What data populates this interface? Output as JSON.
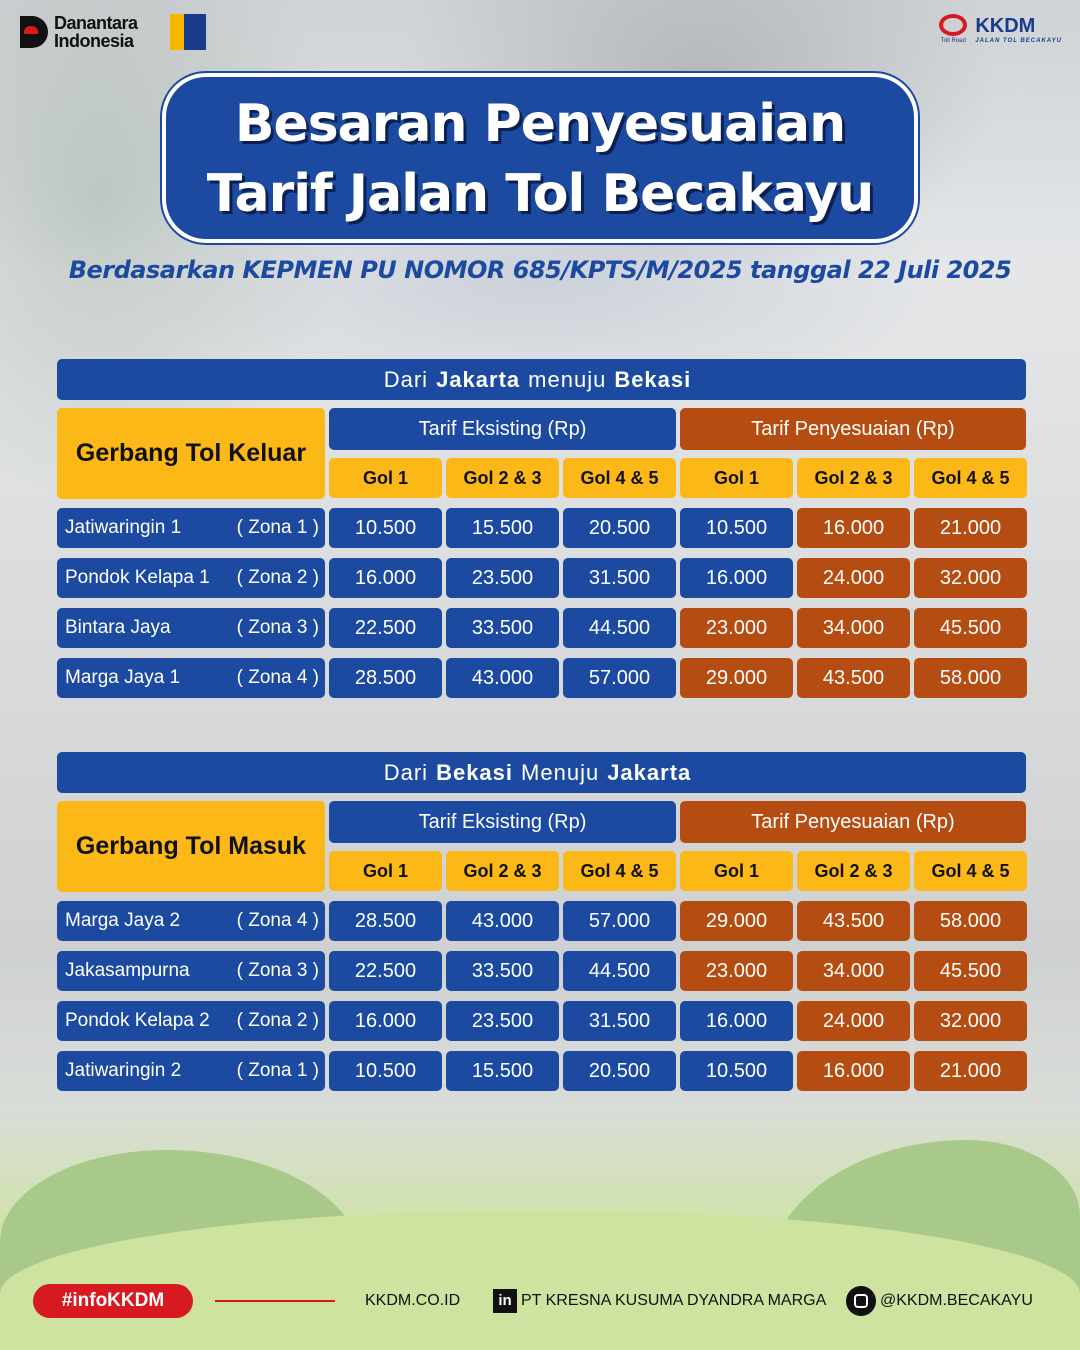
{
  "logos": {
    "left_text": "Danantara Indonesia",
    "right_brand": "KKDM",
    "right_sub": "JALAN TOL BECAKAYU",
    "toll_road": "Toll Road"
  },
  "title": {
    "line1": "Besaran Penyesuaian",
    "line2": "Tarif Jalan Tol Becakayu"
  },
  "subtitle": "Berdasarkan KEPMEN PU NOMOR 685/KPTS/M/2025 tanggal 22 Juli 2025",
  "colors": {
    "blue": "#1b4aa0",
    "orange": "#b54d12",
    "yellow": "#fbb817",
    "red": "#d71920"
  },
  "tables": [
    {
      "head_pre": "Dari",
      "head_from": "Jakarta",
      "head_mid": "menuju",
      "head_to": "Bekasi",
      "gate_label": "Gerbang Tol Keluar",
      "existing_label": "Tarif Eksisting (Rp)",
      "new_label": "Tarif Penyesuaian (Rp)",
      "classes": [
        "Gol 1",
        "Gol 2 & 3",
        "Gol 4 & 5",
        "Gol 1",
        "Gol 2 & 3",
        "Gol 4 & 5"
      ],
      "rows": [
        {
          "gate": "Jatiwaringin 1",
          "zone": "( Zona 1 )",
          "existing": [
            "10.500",
            "15.500",
            "20.500"
          ],
          "new": [
            "10.500",
            "16.000",
            "21.000"
          ]
        },
        {
          "gate": "Pondok Kelapa 1",
          "zone": "( Zona 2 )",
          "existing": [
            "16.000",
            "23.500",
            "31.500"
          ],
          "new": [
            "16.000",
            "24.000",
            "32.000"
          ]
        },
        {
          "gate": "Bintara Jaya",
          "zone": "( Zona 3 )",
          "existing": [
            "22.500",
            "33.500",
            "44.500"
          ],
          "new": [
            "23.000",
            "34.000",
            "45.500"
          ]
        },
        {
          "gate": "Marga Jaya 1",
          "zone": "( Zona 4 )",
          "existing": [
            "28.500",
            "43.000",
            "57.000"
          ],
          "new": [
            "29.000",
            "43.500",
            "58.000"
          ]
        }
      ]
    },
    {
      "head_pre": "Dari",
      "head_from": "Bekasi",
      "head_mid": "Menuju",
      "head_to": "Jakarta",
      "gate_label": "Gerbang Tol Masuk",
      "existing_label": "Tarif Eksisting (Rp)",
      "new_label": "Tarif Penyesuaian (Rp)",
      "classes": [
        "Gol 1",
        "Gol 2 & 3",
        "Gol 4 & 5",
        "Gol 1",
        "Gol 2 & 3",
        "Gol 4 & 5"
      ],
      "rows": [
        {
          "gate": "Marga Jaya 2",
          "zone": "( Zona 4 )",
          "existing": [
            "28.500",
            "43.000",
            "57.000"
          ],
          "new": [
            "29.000",
            "43.500",
            "58.000"
          ]
        },
        {
          "gate": "Jakasampurna",
          "zone": "( Zona 3 )",
          "existing": [
            "22.500",
            "33.500",
            "44.500"
          ],
          "new": [
            "23.000",
            "34.000",
            "45.500"
          ]
        },
        {
          "gate": "Pondok Kelapa 2",
          "zone": "( Zona 2 )",
          "existing": [
            "16.000",
            "23.500",
            "31.500"
          ],
          "new": [
            "16.000",
            "24.000",
            "32.000"
          ]
        },
        {
          "gate": "Jatiwaringin 2",
          "zone": "( Zona 1 )",
          "existing": [
            "10.500",
            "15.500",
            "20.500"
          ],
          "new": [
            "10.500",
            "16.000",
            "21.000"
          ]
        }
      ]
    }
  ],
  "footer": {
    "hashtag": "#infoKKDM",
    "website": "KKDM.CO.ID",
    "linkedin_icon": "in",
    "linkedin": "PT KRESNA KUSUMA DYANDRA MARGA",
    "instagram": "@KKDM.BECAKAYU"
  }
}
